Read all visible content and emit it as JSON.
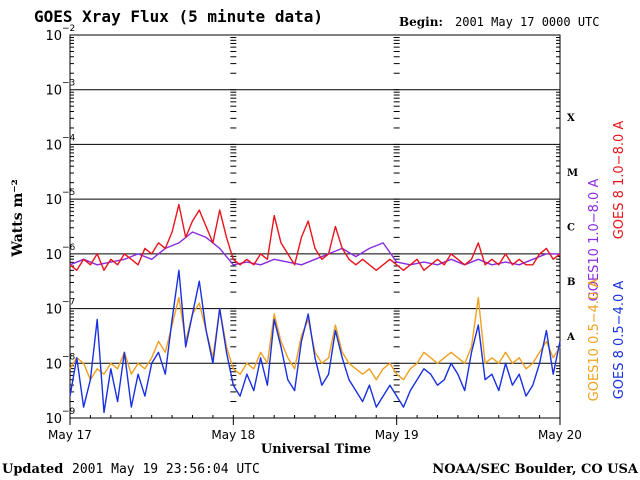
{
  "header": {
    "title": "GOES Xray Flux (5 minute data)",
    "begin_label": "Begin:",
    "begin_value": "2001 May 17 0000 UTC"
  },
  "footer": {
    "updated_label": "Updated",
    "updated_value": "2001 May 19 23:56:04 UTC",
    "credit": "NOAA/SEC Boulder, CO USA"
  },
  "chart_data": {
    "type": "line",
    "title": "GOES Xray Flux (5 minute data)",
    "xlabel": "Universal Time",
    "ylabel": "Watts m⁻²",
    "y_scale": "log",
    "ylim": [
      1e-09,
      0.01
    ],
    "xlim": [
      "2001-05-17",
      "2001-05-20"
    ],
    "grid": true,
    "x_ticks": [
      "May 17",
      "May 18",
      "May 19",
      "May 20"
    ],
    "y_ticks": [
      {
        "base": "10",
        "exp": "−2",
        "value": 0.01
      },
      {
        "base": "10",
        "exp": "−3",
        "value": 0.001
      },
      {
        "base": "10",
        "exp": "−4",
        "value": 0.0001
      },
      {
        "base": "10",
        "exp": "−5",
        "value": 1e-05
      },
      {
        "base": "10",
        "exp": "−6",
        "value": 1e-06
      },
      {
        "base": "10",
        "exp": "−7",
        "value": 1e-07
      },
      {
        "base": "10",
        "exp": "−8",
        "value": 1e-08
      },
      {
        "base": "10",
        "exp": "−9",
        "value": 1e-09
      }
    ],
    "flare_classes": [
      {
        "label": "X",
        "band": [
          0.0001,
          0.001
        ]
      },
      {
        "label": "M",
        "band": [
          1e-05,
          0.0001
        ]
      },
      {
        "label": "C",
        "band": [
          1e-06,
          1e-05
        ]
      },
      {
        "label": "B",
        "band": [
          1e-07,
          1e-06
        ]
      },
      {
        "label": "A",
        "band": [
          1e-08,
          1e-07
        ]
      }
    ],
    "legend_placement": "right, vertical",
    "series": [
      {
        "name": "GOES10 1.0−8.0 A",
        "color": "#8a2be2",
        "x_hours": [
          0,
          2,
          4,
          6,
          8,
          10,
          12,
          14,
          16,
          18,
          20,
          22,
          24,
          26,
          28,
          30,
          32,
          34,
          36,
          38,
          40,
          42,
          44,
          46,
          48,
          50,
          52,
          54,
          56,
          58,
          60,
          62,
          64,
          66,
          68,
          70,
          72
        ],
        "log10_y": [
          -6.2,
          -6.1,
          -6.2,
          -6.15,
          -6.1,
          -6.0,
          -6.1,
          -5.9,
          -5.8,
          -5.6,
          -5.7,
          -5.9,
          -6.2,
          -6.15,
          -6.2,
          -6.1,
          -6.15,
          -6.2,
          -6.1,
          -6.0,
          -5.9,
          -6.05,
          -5.9,
          -5.8,
          -6.15,
          -6.2,
          -6.15,
          -6.2,
          -6.1,
          -6.2,
          -6.1,
          -6.2,
          -6.15,
          -6.2,
          -6.1,
          -6.0,
          -6.0
        ]
      },
      {
        "name": "GOES 8 1.0−8.0 A",
        "color": "#e8141c",
        "x_hours": [
          0,
          1,
          2,
          3,
          4,
          5,
          6,
          7,
          8,
          9,
          10,
          11,
          12,
          13,
          14,
          15,
          16,
          17,
          18,
          19,
          20,
          21,
          22,
          23,
          24,
          25,
          26,
          27,
          28,
          29,
          30,
          31,
          32,
          33,
          34,
          35,
          36,
          37,
          38,
          39,
          40,
          41,
          42,
          43,
          44,
          45,
          46,
          47,
          48,
          49,
          50,
          51,
          52,
          53,
          54,
          55,
          56,
          57,
          58,
          59,
          60,
          61,
          62,
          63,
          64,
          65,
          66,
          67,
          68,
          69,
          70,
          71,
          72
        ],
        "log10_y": [
          -6.2,
          -6.3,
          -6.1,
          -6.2,
          -6.0,
          -6.3,
          -6.1,
          -6.2,
          -6.0,
          -6.1,
          -6.2,
          -5.9,
          -6.0,
          -5.8,
          -5.9,
          -5.6,
          -5.1,
          -5.7,
          -5.4,
          -5.2,
          -5.5,
          -5.8,
          -5.2,
          -5.7,
          -6.1,
          -6.2,
          -6.1,
          -6.2,
          -6.0,
          -6.1,
          -5.3,
          -5.8,
          -6.0,
          -6.2,
          -5.7,
          -5.4,
          -5.9,
          -6.1,
          -6.0,
          -5.5,
          -5.9,
          -6.1,
          -6.2,
          -6.1,
          -6.2,
          -6.3,
          -6.2,
          -6.1,
          -6.2,
          -6.3,
          -6.2,
          -6.1,
          -6.3,
          -6.2,
          -6.1,
          -6.2,
          -6.0,
          -6.1,
          -6.2,
          -6.1,
          -5.8,
          -6.2,
          -6.1,
          -6.2,
          -6.0,
          -6.2,
          -6.1,
          -6.2,
          -6.2,
          -6.0,
          -5.9,
          -6.1,
          -6.0
        ]
      },
      {
        "name": "GOES10 0.5−4.0 A",
        "color": "#f0a020",
        "x_hours": [
          0,
          1,
          2,
          3,
          4,
          5,
          6,
          7,
          8,
          9,
          10,
          11,
          12,
          13,
          14,
          15,
          16,
          17,
          18,
          19,
          20,
          21,
          22,
          23,
          24,
          25,
          26,
          27,
          28,
          29,
          30,
          31,
          32,
          33,
          34,
          35,
          36,
          37,
          38,
          39,
          40,
          41,
          42,
          43,
          44,
          45,
          46,
          47,
          48,
          49,
          50,
          51,
          52,
          53,
          54,
          55,
          56,
          57,
          58,
          59,
          60,
          61,
          62,
          63,
          64,
          65,
          66,
          67,
          68,
          69,
          70,
          71,
          72
        ],
        "log10_y": [
          -8.1,
          -7.9,
          -8.0,
          -8.3,
          -8.1,
          -8.2,
          -8.0,
          -8.1,
          -7.8,
          -8.2,
          -8.0,
          -8.1,
          -7.9,
          -7.6,
          -7.8,
          -7.3,
          -6.8,
          -7.6,
          -7.1,
          -6.9,
          -7.4,
          -7.9,
          -7.0,
          -7.7,
          -8.1,
          -8.2,
          -8.0,
          -8.1,
          -7.8,
          -8.0,
          -7.1,
          -7.6,
          -7.9,
          -8.1,
          -7.5,
          -7.2,
          -7.8,
          -8.0,
          -7.9,
          -7.3,
          -7.8,
          -8.0,
          -8.1,
          -8.2,
          -8.1,
          -8.3,
          -8.1,
          -8.0,
          -8.2,
          -8.3,
          -8.1,
          -8.0,
          -7.8,
          -7.9,
          -8.0,
          -7.9,
          -7.8,
          -7.9,
          -8.0,
          -7.7,
          -6.8,
          -8.0,
          -7.9,
          -8.0,
          -7.8,
          -8.0,
          -7.9,
          -8.1,
          -8.0,
          -7.8,
          -7.6,
          -7.9,
          -7.7
        ]
      },
      {
        "name": "GOES 8 0.5−4.0 A",
        "color": "#1830e0",
        "x_hours": [
          0,
          1,
          2,
          3,
          4,
          5,
          6,
          7,
          8,
          9,
          10,
          11,
          12,
          13,
          14,
          15,
          16,
          17,
          18,
          19,
          20,
          21,
          22,
          23,
          24,
          25,
          26,
          27,
          28,
          29,
          30,
          31,
          32,
          33,
          34,
          35,
          36,
          37,
          38,
          39,
          40,
          41,
          42,
          43,
          44,
          45,
          46,
          47,
          48,
          49,
          50,
          51,
          52,
          53,
          54,
          55,
          56,
          57,
          58,
          59,
          60,
          61,
          62,
          63,
          64,
          65,
          66,
          67,
          68,
          69,
          70,
          71,
          72
        ],
        "log10_y": [
          -8.6,
          -7.9,
          -8.8,
          -8.3,
          -7.2,
          -8.9,
          -8.1,
          -8.7,
          -7.8,
          -8.8,
          -8.2,
          -8.6,
          -8.0,
          -7.8,
          -8.2,
          -7.2,
          -6.3,
          -7.7,
          -7.1,
          -6.5,
          -7.4,
          -8.0,
          -7.0,
          -7.8,
          -8.4,
          -8.6,
          -8.2,
          -8.5,
          -7.9,
          -8.4,
          -7.2,
          -7.7,
          -8.3,
          -8.5,
          -7.6,
          -7.1,
          -7.9,
          -8.4,
          -8.2,
          -7.4,
          -7.9,
          -8.3,
          -8.5,
          -8.7,
          -8.4,
          -8.8,
          -8.6,
          -8.4,
          -8.6,
          -8.8,
          -8.5,
          -8.3,
          -8.1,
          -8.2,
          -8.4,
          -8.3,
          -8.0,
          -8.2,
          -8.5,
          -7.8,
          -7.3,
          -8.3,
          -8.2,
          -8.5,
          -8.0,
          -8.4,
          -8.2,
          -8.6,
          -8.4,
          -8.0,
          -7.4,
          -8.2,
          -7.6
        ]
      }
    ]
  }
}
